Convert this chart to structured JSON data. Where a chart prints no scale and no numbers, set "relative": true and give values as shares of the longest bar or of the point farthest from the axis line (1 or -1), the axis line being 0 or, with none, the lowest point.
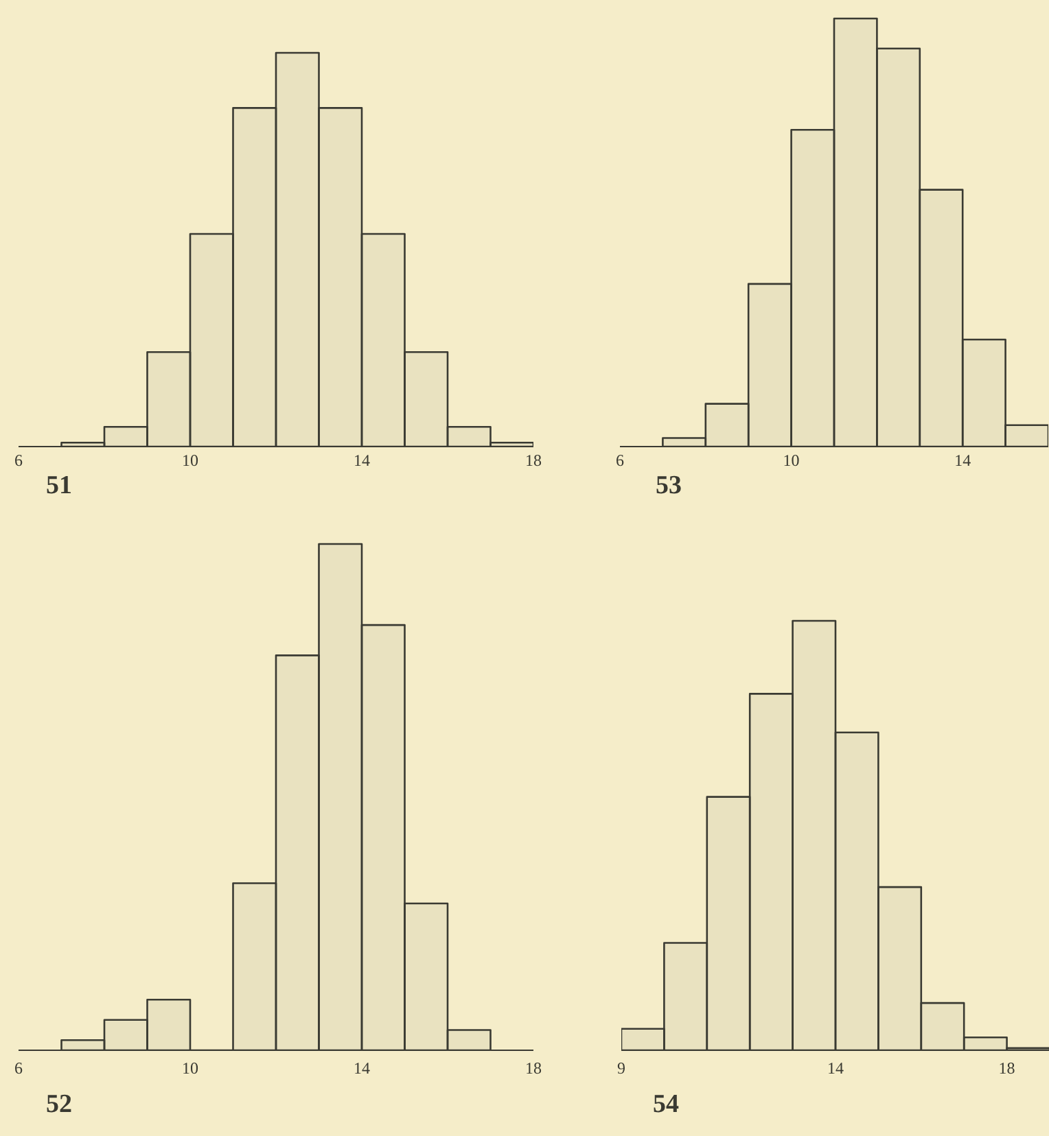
{
  "chart_data": [
    {
      "type": "bar",
      "title": "51",
      "relative": true,
      "x": [
        7.5,
        8.5,
        9.5,
        10.5,
        11.5,
        12.5,
        13.5,
        14.5,
        15.5,
        16.5,
        17.5
      ],
      "values": [
        0.01,
        0.05,
        0.24,
        0.54,
        0.86,
        1,
        0.86,
        0.54,
        0.24,
        0.05,
        0.01
      ],
      "color": "#3a3a32",
      "xlim": [
        6,
        18
      ],
      "xticks": [
        6,
        10,
        14,
        18
      ]
    },
    {
      "type": "bar",
      "title": "53",
      "relative": true,
      "x": [
        7.5,
        8.5,
        9.5,
        10.5,
        11.5,
        12.5,
        13.5,
        14.5,
        15.5
      ],
      "values": [
        0.02,
        0.1,
        0.38,
        0.74,
        1,
        0.93,
        0.6,
        0.25,
        0.05
      ],
      "color": "#3a3a32",
      "xlim": [
        6,
        16
      ],
      "xticks": [
        6,
        10,
        14
      ]
    },
    {
      "type": "bar",
      "title": "52",
      "relative": true,
      "x": [
        7.5,
        8.5,
        9.5,
        10.5,
        11.5,
        12.5,
        13.5,
        14.5,
        15.5,
        16.5
      ],
      "values": [
        0.02,
        0.06,
        0.1,
        0,
        0.33,
        0.78,
        1,
        0.84,
        0.29,
        0.04
      ],
      "color": "#3a3a32",
      "xlim": [
        6,
        18
      ],
      "xticks": [
        6,
        10,
        14,
        18
      ]
    },
    {
      "type": "bar",
      "title": "54",
      "relative": true,
      "x": [
        9.5,
        10.5,
        11.5,
        12.5,
        13.5,
        14.5,
        15.5,
        16.5,
        17.5,
        18.5
      ],
      "values": [
        0.05,
        0.25,
        0.59,
        0.83,
        1,
        0.74,
        0.38,
        0.11,
        0.03,
        0.005
      ],
      "color": "#3a3a32",
      "xlim": [
        9,
        19
      ],
      "xticks": [
        9,
        14,
        18
      ]
    }
  ]
}
